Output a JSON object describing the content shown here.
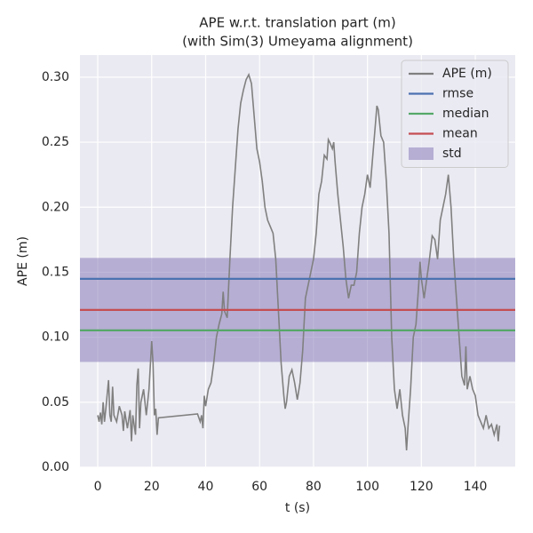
{
  "chart_data": {
    "type": "line",
    "title": "APE w.r.t. translation part (m)",
    "subtitle": "(with Sim(3) Umeyama alignment)",
    "xlabel": "t (s)",
    "ylabel": "APE (m)",
    "xlim": [
      -6.6,
      154.8
    ],
    "ylim": [
      0,
      0.317
    ],
    "xticks": [
      0,
      20,
      40,
      60,
      80,
      100,
      120,
      140
    ],
    "yticks": [
      {
        "value": 0,
        "label": "0.00"
      },
      {
        "value": 0.05,
        "label": "0.05"
      },
      {
        "value": 0.1,
        "label": "0.10"
      },
      {
        "value": 0.15,
        "label": "0.15"
      },
      {
        "value": 0.2,
        "label": "0.20"
      },
      {
        "value": 0.25,
        "label": "0.25"
      },
      {
        "value": 0.3,
        "label": "0.30"
      }
    ],
    "grid": true,
    "legend": "upper right",
    "series": [
      {
        "name": "APE (m)",
        "color": "#808080",
        "x": [
          0,
          0.5,
          1,
          1.5,
          2,
          2.5,
          3,
          4,
          4.5,
          5,
          5.5,
          6,
          7,
          8,
          9,
          9.5,
          10,
          11,
          12,
          12.5,
          13,
          14,
          14.5,
          15,
          15.5,
          16,
          17,
          18,
          19,
          20,
          20.5,
          21,
          21.5,
          22,
          22.5,
          37,
          38,
          38.5,
          39,
          39.5,
          40,
          41,
          42,
          43,
          44,
          45,
          46,
          46.5,
          47,
          48,
          49,
          50,
          51,
          52,
          53,
          54,
          55,
          56,
          57,
          58,
          59,
          60,
          61,
          62,
          63,
          64,
          65,
          66,
          67,
          68,
          69,
          69.5,
          70,
          71,
          72,
          73,
          74,
          75,
          76,
          77,
          78,
          79,
          80,
          81,
          82,
          83,
          84,
          85,
          85.5,
          86,
          87,
          87.5,
          88,
          89,
          90,
          91,
          92,
          93,
          94,
          95,
          96,
          97,
          98,
          99,
          100,
          101,
          102,
          103,
          103.5,
          104,
          105,
          106,
          107,
          108,
          109,
          110,
          111,
          112,
          113,
          114,
          114.5,
          115,
          116,
          117,
          118,
          119,
          119.5,
          120,
          121,
          122,
          123,
          124,
          125,
          126,
          127,
          128,
          129,
          130,
          131,
          132,
          133,
          134,
          135,
          136,
          136.5,
          137,
          138,
          139,
          140,
          141,
          142,
          143,
          144,
          145,
          146,
          147,
          148,
          148.5,
          149
        ],
        "values": [
          0.04,
          0.035,
          0.042,
          0.033,
          0.05,
          0.035,
          0.045,
          0.067,
          0.04,
          0.035,
          0.062,
          0.04,
          0.035,
          0.047,
          0.04,
          0.028,
          0.043,
          0.03,
          0.044,
          0.02,
          0.04,
          0.025,
          0.063,
          0.076,
          0.03,
          0.05,
          0.06,
          0.04,
          0.06,
          0.097,
          0.08,
          0.04,
          0.045,
          0.025,
          0.038,
          0.041,
          0.035,
          0.04,
          0.03,
          0.055,
          0.047,
          0.06,
          0.065,
          0.08,
          0.1,
          0.11,
          0.118,
          0.135,
          0.12,
          0.115,
          0.16,
          0.2,
          0.23,
          0.26,
          0.28,
          0.29,
          0.298,
          0.302,
          0.295,
          0.27,
          0.245,
          0.235,
          0.22,
          0.2,
          0.19,
          0.185,
          0.18,
          0.16,
          0.12,
          0.08,
          0.055,
          0.045,
          0.05,
          0.07,
          0.075,
          0.065,
          0.052,
          0.065,
          0.09,
          0.13,
          0.14,
          0.15,
          0.16,
          0.18,
          0.21,
          0.22,
          0.24,
          0.237,
          0.252,
          0.25,
          0.245,
          0.25,
          0.235,
          0.21,
          0.19,
          0.17,
          0.145,
          0.13,
          0.14,
          0.14,
          0.15,
          0.18,
          0.2,
          0.21,
          0.225,
          0.215,
          0.24,
          0.265,
          0.278,
          0.275,
          0.255,
          0.25,
          0.22,
          0.18,
          0.1,
          0.06,
          0.045,
          0.06,
          0.04,
          0.03,
          0.013,
          0.03,
          0.06,
          0.1,
          0.11,
          0.14,
          0.158,
          0.145,
          0.13,
          0.145,
          0.16,
          0.178,
          0.175,
          0.16,
          0.19,
          0.2,
          0.21,
          0.225,
          0.2,
          0.16,
          0.13,
          0.1,
          0.07,
          0.063,
          0.093,
          0.06,
          0.07,
          0.06,
          0.055,
          0.04,
          0.035,
          0.03,
          0.04,
          0.03,
          0.033,
          0.025,
          0.033,
          0.02,
          0.032
        ]
      }
    ],
    "hlines": [
      {
        "name": "rmse",
        "color": "#4c72b0",
        "value": 0.1449
      },
      {
        "name": "median",
        "color": "#55a868",
        "value": 0.1053
      },
      {
        "name": "mean",
        "color": "#c44e52",
        "value": 0.121
      }
    ],
    "band": {
      "name": "std",
      "color": "#8172b3",
      "value": 0.04
    }
  }
}
